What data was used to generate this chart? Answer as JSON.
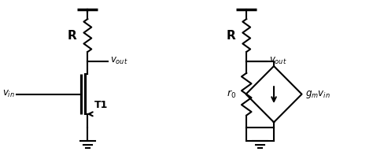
{
  "bg_color": "#ffffff",
  "line_color": "#000000",
  "line_width": 1.5,
  "fig_width": 4.74,
  "fig_height": 2.02,
  "dpi": 100,
  "xlim": [
    0,
    10
  ],
  "ylim": [
    0,
    4.3
  ]
}
